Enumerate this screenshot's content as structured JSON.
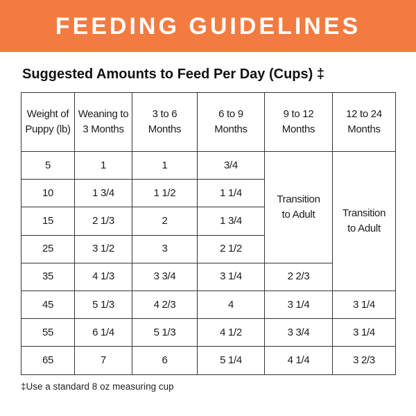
{
  "banner": {
    "title": "FEEDING GUIDELINES"
  },
  "subtitle": "Suggested Amounts to Feed Per Day (Cups) ‡",
  "table": {
    "header": [
      [
        "Weight of",
        "Puppy (lb)"
      ],
      [
        "Weaning to",
        "3 Months"
      ],
      [
        "3 to 6",
        "Months"
      ],
      [
        "6 to 9",
        "Months"
      ],
      [
        "9 to 12",
        "Months"
      ],
      [
        "12 to 24",
        "Months"
      ]
    ],
    "rows": [
      [
        "5",
        "1",
        "1",
        "3/4",
        [
          "Transition",
          "to Adult"
        ],
        [
          "Transition",
          "to Adult"
        ]
      ],
      [
        "10",
        "1 3/4",
        "1 1/2",
        "1 1/4"
      ],
      [
        "15",
        "2 1/3",
        "2",
        "1 3/4"
      ],
      [
        "25",
        "3 1/2",
        "3",
        "2 1/2"
      ],
      [
        "35",
        "4 1/3",
        "3 3/4",
        "3 1/4",
        "2 2/3"
      ],
      [
        "45",
        "5 1/3",
        "4 2/3",
        "4",
        "3 1/4",
        "3 1/4"
      ],
      [
        "55",
        "6 1/4",
        "5 1/3",
        "4 1/2",
        "3 3/4",
        "3 1/4"
      ],
      [
        "65",
        "7",
        "6",
        "5 1/4",
        "4 1/4",
        "3 2/3"
      ]
    ]
  },
  "footnote": "‡Use a standard 8 oz measuring cup"
}
